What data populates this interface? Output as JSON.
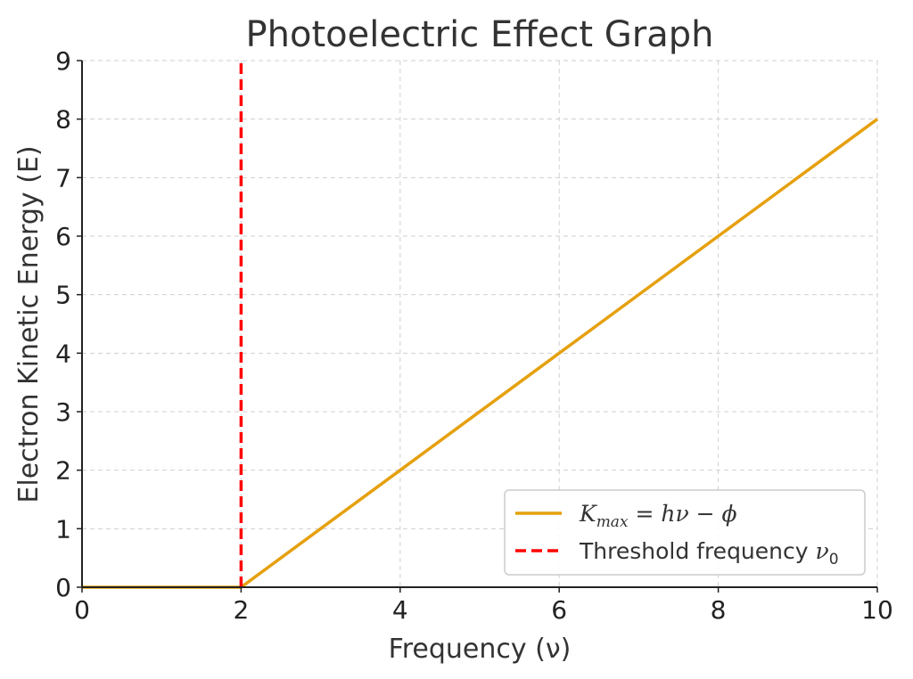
{
  "chart_data": {
    "type": "line",
    "title": "Photoelectric Effect Graph",
    "xlabel": "Frequency (ν)",
    "ylabel": "Electron Kinetic Energy (E)",
    "xlim": [
      0,
      10
    ],
    "ylim": [
      0,
      9
    ],
    "xticks": [
      0,
      2,
      4,
      6,
      8,
      10
    ],
    "yticks": [
      0,
      1,
      2,
      3,
      4,
      5,
      6,
      7,
      8,
      9
    ],
    "grid": true,
    "legend_position": "lower-right",
    "series": [
      {
        "name": "K_max = hν − ϕ",
        "style": "solid",
        "color": "#E5A00D",
        "x": [
          0,
          2,
          4,
          6,
          8,
          10
        ],
        "y": [
          0,
          0,
          2,
          4,
          6,
          8
        ]
      },
      {
        "name": "Threshold frequency ν0",
        "style": "dashed",
        "color": "#FF0000",
        "x": [
          2,
          2
        ],
        "y": [
          0,
          9
        ]
      }
    ]
  },
  "legend": {
    "kmax_main": "K",
    "kmax_sub": "max",
    "kmax_rest": " = hν − ϕ",
    "threshold_text": "Threshold frequency ",
    "threshold_nu": "ν",
    "threshold_sub": "0"
  }
}
